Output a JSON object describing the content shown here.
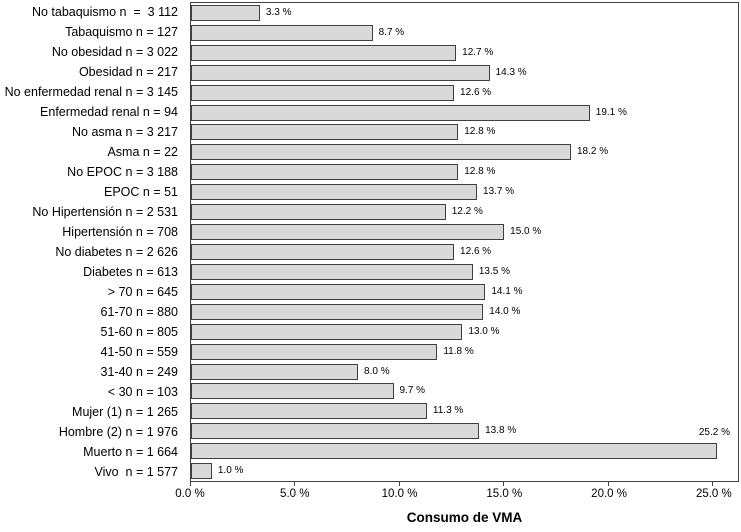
{
  "chart_data": {
    "type": "bar",
    "orientation": "horizontal",
    "xlabel": "Consumo de VMA",
    "ylabel": "",
    "xlim": [
      0,
      26.2
    ],
    "grid": false,
    "legend": null,
    "bar_color": "#d9d9d9",
    "bar_border_color": "#404040",
    "axis_color": "#404040",
    "text_color": "#000000",
    "background_color": "#ffffff",
    "x_ticks": [
      {
        "value": 0,
        "label": "0.0 %"
      },
      {
        "value": 5,
        "label": "5.0 %"
      },
      {
        "value": 10,
        "label": "10.0 %"
      },
      {
        "value": 15,
        "label": "15.0 %"
      },
      {
        "value": 20,
        "label": "20.0 %"
      },
      {
        "value": 25,
        "label": "25.0 %"
      }
    ],
    "points": [
      {
        "category": "No tabaquismo n  =  3 112",
        "value": 3.3,
        "value_label": "3.3 %"
      },
      {
        "category": "Tabaquismo n = 127",
        "value": 8.7,
        "value_label": "8.7 %"
      },
      {
        "category": "No obesidad n = 3 022",
        "value": 12.7,
        "value_label": "12.7 %"
      },
      {
        "category": "Obesidad n = 217",
        "value": 14.3,
        "value_label": "14.3 %"
      },
      {
        "category": "No enfermedad renal n = 3 145",
        "value": 12.6,
        "value_label": "12.6 %"
      },
      {
        "category": "Enfermedad renal n = 94",
        "value": 19.1,
        "value_label": "19.1 %"
      },
      {
        "category": "No asma n = 3 217",
        "value": 12.8,
        "value_label": "12.8 %"
      },
      {
        "category": "Asma n = 22",
        "value": 18.2,
        "value_label": "18.2 %"
      },
      {
        "category": "No EPOC n = 3 188",
        "value": 12.8,
        "value_label": "12.8 %"
      },
      {
        "category": "EPOC n = 51",
        "value": 13.7,
        "value_label": "13.7 %"
      },
      {
        "category": "No Hipertensión n = 2 531",
        "value": 12.2,
        "value_label": "12.2 %"
      },
      {
        "category": "Hipertensión n = 708",
        "value": 15.0,
        "value_label": "15.0 %"
      },
      {
        "category": "No diabetes n = 2 626",
        "value": 12.6,
        "value_label": "12.6 %"
      },
      {
        "category": "Diabetes n = 613",
        "value": 13.5,
        "value_label": "13.5 %"
      },
      {
        "category": "> 70 n = 645",
        "value": 14.1,
        "value_label": "14.1 %"
      },
      {
        "category": "61-70 n = 880",
        "value": 14.0,
        "value_label": "14.0 %"
      },
      {
        "category": "51-60 n = 805",
        "value": 13.0,
        "value_label": "13.0 %"
      },
      {
        "category": "41-50 n = 559",
        "value": 11.8,
        "value_label": "11.8 %"
      },
      {
        "category": "31-40 n = 249",
        "value": 8.0,
        "value_label": "8.0 %"
      },
      {
        "category": "< 30 n = 103",
        "value": 9.7,
        "value_label": "9.7 %"
      },
      {
        "category": "Mujer (1) n = 1 265",
        "value": 11.3,
        "value_label": "11.3 %"
      },
      {
        "category": "Hombre (2) n = 1 976",
        "value": 13.8,
        "value_label": "13.8 %"
      },
      {
        "category": "Muerto n = 1 664",
        "value": 25.2,
        "value_label": "25.2 %",
        "value_label_position": "above-end"
      },
      {
        "category": "Vivo  n = 1 577",
        "value": 1.0,
        "value_label": "1.0 %"
      }
    ]
  }
}
